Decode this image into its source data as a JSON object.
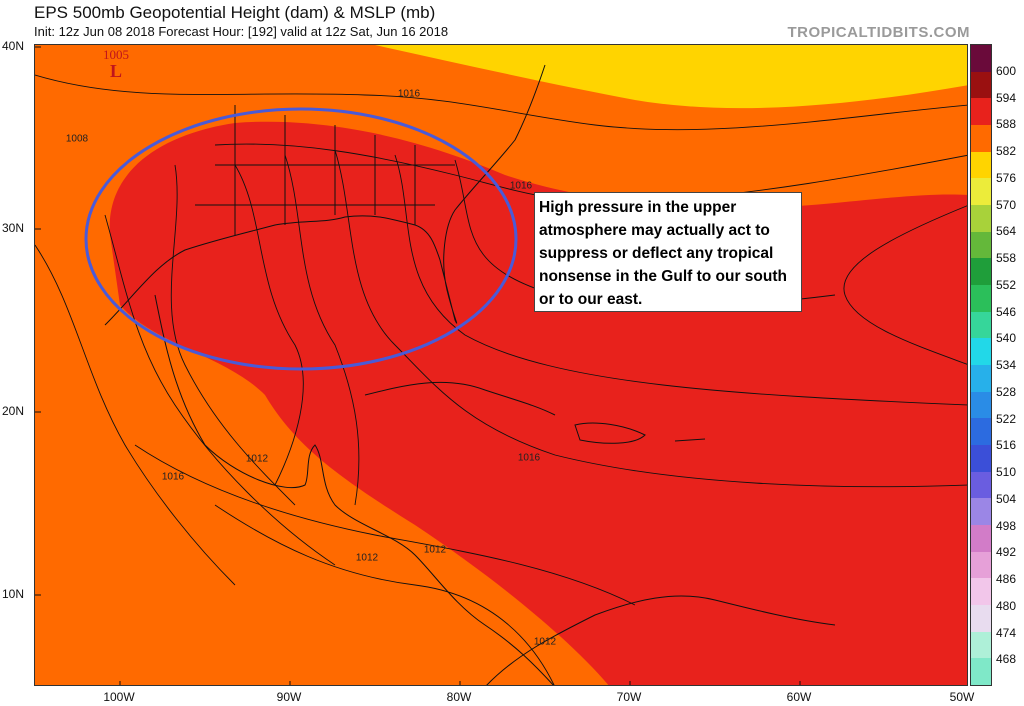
{
  "header": {
    "title": "EPS 500mb Geopotential Height (dam) & MSLP (mb)",
    "subtitle": "Init: 12z Jun 08 2018   Forecast Hour: [192]   valid at 12z Sat, Jun 16 2018",
    "brand": "TROPICALTIDBITS.COM"
  },
  "axes": {
    "lat_labels": [
      "40N",
      "30N",
      "20N",
      "10N"
    ],
    "lon_labels": [
      "100W",
      "90W",
      "80W",
      "70W",
      "60W",
      "50W"
    ]
  },
  "colorbar": {
    "labels": [
      "468",
      "474",
      "480",
      "486",
      "492",
      "498",
      "504",
      "510",
      "516",
      "522",
      "528",
      "534",
      "540",
      "546",
      "552",
      "558",
      "564",
      "570",
      "576",
      "582",
      "588",
      "594",
      "600"
    ],
    "colors": [
      "#7fe8c8",
      "#aef0d8",
      "#e8dcef",
      "#f2c6ea",
      "#e6a0d8",
      "#d27cc8",
      "#9b86e6",
      "#6a5de0",
      "#3b4fd8",
      "#2c6be0",
      "#2a8ce6",
      "#27b0ea",
      "#22d8e8",
      "#36d69a",
      "#2bbf5a",
      "#1f9e3a",
      "#64b83a",
      "#a8d23a",
      "#ecec3a",
      "#ffd400",
      "#ff6a00",
      "#e8221c",
      "#9a1010",
      "#6a0a3a"
    ]
  },
  "map": {
    "low_pressure_value": "1005",
    "low_pressure_symbol": "L",
    "isobar_labels": [
      "1016",
      "1016",
      "1008",
      "1016",
      "1016",
      "1012",
      "1012",
      "1012",
      "1012",
      "1016"
    ],
    "colors": {
      "band_582": "#ffd400",
      "band_588": "#ff6a00",
      "band_594": "#e8221c",
      "highlight_circle": "#4a5ad8"
    }
  },
  "annotation": {
    "text": "High pressure in the upper atmosphere may actually act to suppress or deflect any tropical nonsense in the Gulf to our south or to our east."
  }
}
